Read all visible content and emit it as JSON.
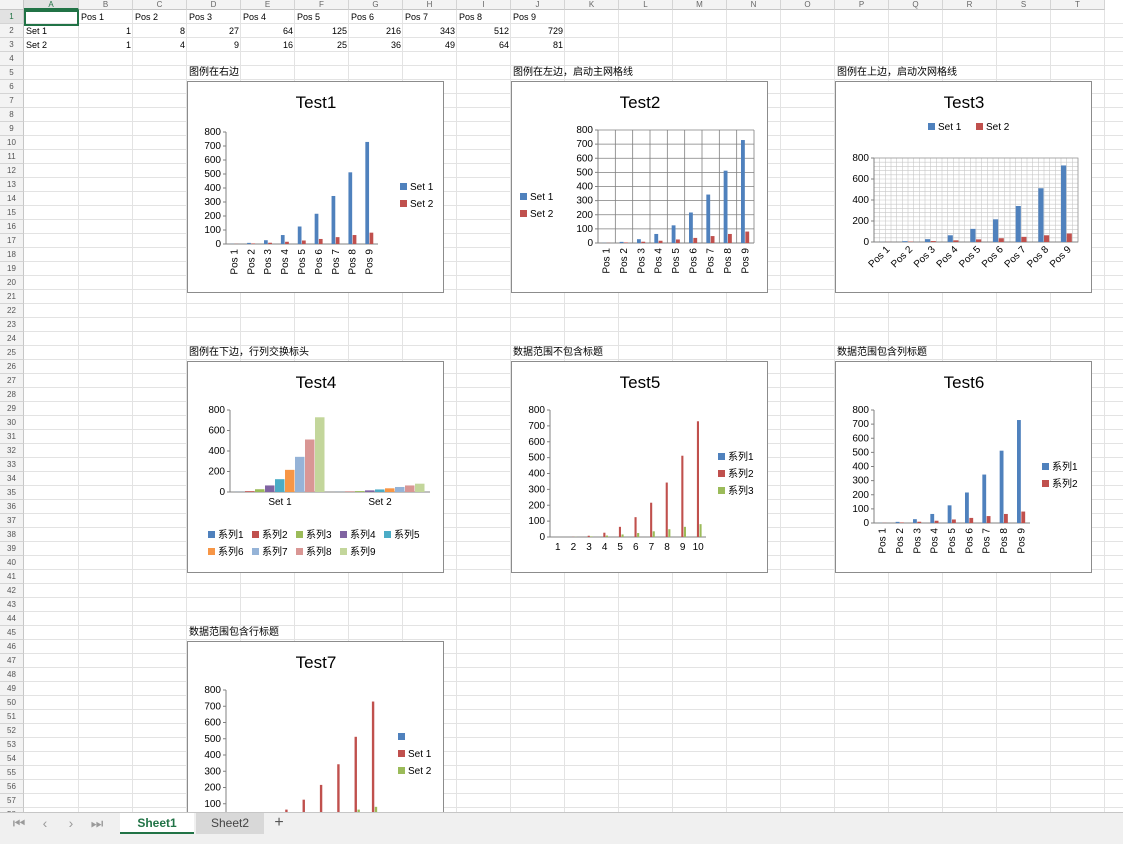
{
  "columns": [
    "A",
    "B",
    "C",
    "D",
    "E",
    "F",
    "G",
    "H",
    "I",
    "J",
    "K",
    "L",
    "M",
    "N",
    "O",
    "P",
    "Q",
    "R",
    "S",
    "T"
  ],
  "sheet_cells": {
    "header_row": [
      "",
      "Pos 1",
      "Pos 2",
      "Pos 3",
      "Pos 4",
      "Pos 5",
      "Pos 6",
      "Pos 7",
      "Pos 8",
      "Pos 9"
    ],
    "rows": [
      {
        "label": "Set 1",
        "values": [
          "1",
          "8",
          "27",
          "64",
          "125",
          "216",
          "343",
          "512",
          "729"
        ]
      },
      {
        "label": "Set 2",
        "values": [
          "1",
          "4",
          "9",
          "16",
          "25",
          "36",
          "49",
          "64",
          "81"
        ]
      }
    ]
  },
  "colors": {
    "blue": "#4f81bd",
    "red": "#c0504d",
    "green": "#9bbb59",
    "purple": "#8064a2",
    "teal": "#4bacc6",
    "orange": "#f79646",
    "lightblue": "#95b3d7",
    "pink": "#d99694",
    "lightgreen": "#c3d69b",
    "accent": "#217346"
  },
  "charts": [
    {
      "id": "test1",
      "label": "图例在右边",
      "title": "Test1"
    },
    {
      "id": "test2",
      "label": "图例在左边，启动主网格线",
      "title": "Test2"
    },
    {
      "id": "test3",
      "label": "图例在上边，启动次网格线",
      "title": "Test3"
    },
    {
      "id": "test4",
      "label": "图例在下边，行列交换标头",
      "title": "Test4"
    },
    {
      "id": "test5",
      "label": "数据范围不包含标题",
      "title": "Test5"
    },
    {
      "id": "test6",
      "label": "数据范围包含列标题",
      "title": "Test6"
    },
    {
      "id": "test7",
      "label": "数据范围包含行标题",
      "title": "Test7"
    }
  ],
  "chart_data": [
    {
      "type": "bar",
      "title": "Test1",
      "categories": [
        "Pos 1",
        "Pos 2",
        "Pos 3",
        "Pos 4",
        "Pos 5",
        "Pos 6",
        "Pos 7",
        "Pos 8",
        "Pos 9"
      ],
      "series": [
        {
          "name": "Set 1",
          "values": [
            1,
            8,
            27,
            64,
            125,
            216,
            343,
            512,
            729
          ]
        },
        {
          "name": "Set 2",
          "values": [
            1,
            4,
            9,
            16,
            25,
            36,
            49,
            64,
            81
          ]
        }
      ],
      "ylim": [
        0,
        800
      ],
      "yticks": [
        "0",
        "100",
        "200",
        "300",
        "400",
        "500",
        "600",
        "700",
        "800"
      ],
      "legend": "right",
      "grid": "none"
    },
    {
      "type": "bar",
      "title": "Test2",
      "categories": [
        "Pos 1",
        "Pos 2",
        "Pos 3",
        "Pos 4",
        "Pos 5",
        "Pos 6",
        "Pos 7",
        "Pos 8",
        "Pos 9"
      ],
      "series": [
        {
          "name": "Set 1",
          "values": [
            1,
            8,
            27,
            64,
            125,
            216,
            343,
            512,
            729
          ]
        },
        {
          "name": "Set 2",
          "values": [
            1,
            4,
            9,
            16,
            25,
            36,
            49,
            64,
            81
          ]
        }
      ],
      "ylim": [
        0,
        800
      ],
      "yticks": [
        "0",
        "100",
        "200",
        "300",
        "400",
        "500",
        "600",
        "700",
        "800"
      ],
      "legend": "left",
      "grid": "major"
    },
    {
      "type": "bar",
      "title": "Test3",
      "categories": [
        "Pos 1",
        "Pos 2",
        "Pos 3",
        "Pos 4",
        "Pos 5",
        "Pos 6",
        "Pos 7",
        "Pos 8",
        "Pos 9"
      ],
      "series": [
        {
          "name": "Set 1",
          "values": [
            1,
            8,
            27,
            64,
            125,
            216,
            343,
            512,
            729
          ]
        },
        {
          "name": "Set 2",
          "values": [
            1,
            4,
            9,
            16,
            25,
            36,
            49,
            64,
            81
          ]
        }
      ],
      "ylim": [
        0,
        800
      ],
      "yticks": [
        "0",
        "200",
        "400",
        "600",
        "800"
      ],
      "legend": "top",
      "grid": "minor"
    },
    {
      "type": "bar",
      "title": "Test4",
      "categories": [
        "Set 1",
        "Set 2"
      ],
      "series": [
        {
          "name": "系列1",
          "values": [
            1,
            1
          ]
        },
        {
          "name": "系列2",
          "values": [
            8,
            4
          ]
        },
        {
          "name": "系列3",
          "values": [
            27,
            9
          ]
        },
        {
          "name": "系列4",
          "values": [
            64,
            16
          ]
        },
        {
          "name": "系列5",
          "values": [
            125,
            25
          ]
        },
        {
          "name": "系列6",
          "values": [
            216,
            36
          ]
        },
        {
          "name": "系列7",
          "values": [
            343,
            49
          ]
        },
        {
          "name": "系列8",
          "values": [
            512,
            64
          ]
        },
        {
          "name": "系列9",
          "values": [
            729,
            81
          ]
        }
      ],
      "ylim": [
        0,
        800
      ],
      "yticks": [
        "0",
        "200",
        "400",
        "600",
        "800"
      ],
      "legend": "bottom",
      "grid": "none"
    },
    {
      "type": "bar",
      "title": "Test5",
      "categories": [
        "1",
        "2",
        "3",
        "4",
        "5",
        "6",
        "7",
        "8",
        "9",
        "10"
      ],
      "series": [
        {
          "name": "系列1",
          "values": [
            0,
            0,
            0,
            0,
            0,
            0,
            0,
            0,
            0,
            0
          ]
        },
        {
          "name": "系列2",
          "values": [
            0,
            1,
            8,
            27,
            64,
            125,
            216,
            343,
            512,
            729
          ]
        },
        {
          "name": "系列3",
          "values": [
            0,
            1,
            4,
            9,
            16,
            25,
            36,
            49,
            64,
            81
          ]
        }
      ],
      "ylim": [
        0,
        800
      ],
      "yticks": [
        "0",
        "100",
        "200",
        "300",
        "400",
        "500",
        "600",
        "700",
        "800"
      ],
      "legend": "right",
      "grid": "none"
    },
    {
      "type": "bar",
      "title": "Test6",
      "categories": [
        "Pos 1",
        "Pos 2",
        "Pos 3",
        "Pos 4",
        "Pos 5",
        "Pos 6",
        "Pos 7",
        "Pos 8",
        "Pos 9"
      ],
      "series": [
        {
          "name": "系列1",
          "values": [
            1,
            8,
            27,
            64,
            125,
            216,
            343,
            512,
            729
          ]
        },
        {
          "name": "系列2",
          "values": [
            1,
            4,
            9,
            16,
            25,
            36,
            49,
            64,
            81
          ]
        }
      ],
      "ylim": [
        0,
        800
      ],
      "yticks": [
        "0",
        "100",
        "200",
        "300",
        "400",
        "500",
        "600",
        "700",
        "800"
      ],
      "legend": "right",
      "grid": "none"
    },
    {
      "type": "bar",
      "title": "Test7",
      "categories": [
        "",
        "",
        "",
        "",
        "",
        "",
        "",
        "",
        ""
      ],
      "series": [
        {
          "name": "",
          "values": [
            0,
            0,
            0,
            0,
            0,
            0,
            0,
            0,
            0
          ]
        },
        {
          "name": "Set 1",
          "values": [
            1,
            8,
            27,
            64,
            125,
            216,
            343,
            512,
            729
          ]
        },
        {
          "name": "Set 2",
          "values": [
            1,
            4,
            9,
            16,
            25,
            36,
            49,
            64,
            81
          ]
        }
      ],
      "ylim": [
        0,
        800
      ],
      "yticks": [
        "100",
        "200",
        "300",
        "400",
        "500",
        "600",
        "700",
        "800"
      ],
      "legend": "right",
      "grid": "none"
    }
  ],
  "tabs": {
    "sheet1": "Sheet1",
    "sheet2": "Sheet2",
    "add": "+"
  },
  "nav": {
    "first": "⏮",
    "prev": "‹",
    "next": "›",
    "last": "⏭"
  },
  "icons": {
    "first": "first-sheet-icon",
    "prev": "prev-sheet-icon",
    "next": "next-sheet-icon",
    "last": "last-sheet-icon",
    "add": "add-sheet-icon"
  }
}
